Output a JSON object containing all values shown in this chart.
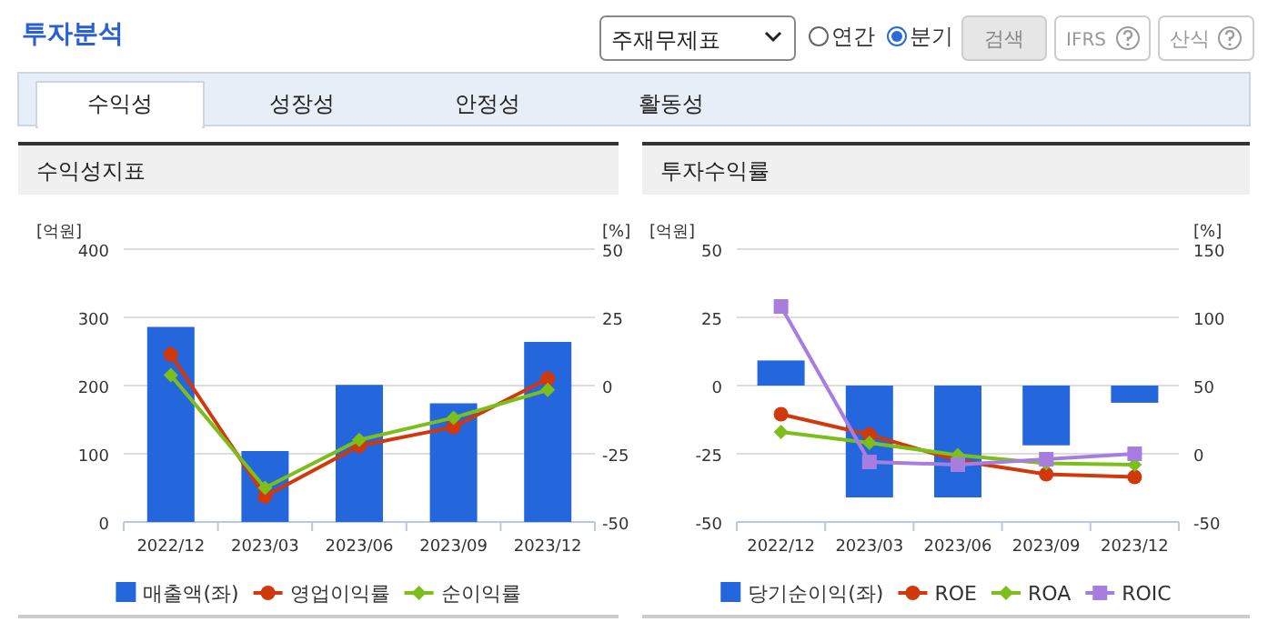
{
  "chart_data": [
    {
      "type": "other",
      "title": "투자분석",
      "annotations": [
        "주재무제표",
        "연간",
        "분기",
        "검색",
        "IFRS",
        "산식",
        "수익성",
        "성장성",
        "안정성",
        "활동성"
      ]
    },
    {
      "type": "bar",
      "title": "수익성지표",
      "ylabel": "[억원]",
      "y2label": "[%]",
      "categories": [
        "2022/12",
        "2023/03",
        "2023/06",
        "2023/09",
        "2023/12"
      ],
      "series": [
        {
          "name": "매출액(좌)",
          "type": "bar",
          "color": "#2467dc",
          "values": [
            286,
            104,
            201,
            174,
            264
          ]
        },
        {
          "name": "영업이익률",
          "type": "line",
          "axis": "y2",
          "marker": "circle",
          "color": "#d1380c",
          "values": [
            11.4,
            -40.6,
            -22.1,
            -15.2,
            2.5
          ]
        },
        {
          "name": "순이익률",
          "type": "line",
          "axis": "y2",
          "marker": "diamond",
          "color": "#7cbf1b",
          "values": [
            3.8,
            -37.5,
            -19.9,
            -11.8,
            -1.6
          ]
        }
      ],
      "ylim": [
        0,
        400
      ],
      "yticks": [
        0,
        100,
        200,
        300,
        400
      ],
      "y2lim": [
        -50,
        50
      ],
      "y2ticks": [
        -50,
        -25,
        0,
        25,
        50
      ],
      "grid": "y",
      "legend": "bottom"
    },
    {
      "type": "bar",
      "title": "투자수익률",
      "ylabel": "[억원]",
      "y2label": "[%]",
      "categories": [
        "2022/12",
        "2023/03",
        "2023/06",
        "2023/09",
        "2023/12"
      ],
      "series": [
        {
          "name": "당기순이익(좌)",
          "type": "bar",
          "color": "#2467dc",
          "values": [
            9.2,
            -41,
            -41,
            -21.9,
            -6.3
          ]
        },
        {
          "name": "ROE",
          "type": "line",
          "axis": "y2",
          "marker": "circle",
          "color": "#d1380c",
          "values": [
            29,
            14,
            -5,
            -15,
            -17
          ]
        },
        {
          "name": "ROA",
          "type": "line",
          "axis": "y2",
          "marker": "diamond",
          "color": "#7cbf1b",
          "values": [
            16,
            8,
            -1,
            -7,
            -8
          ]
        },
        {
          "name": "ROIC",
          "type": "line",
          "axis": "y2",
          "marker": "square",
          "color": "#a77ee0",
          "values": [
            108,
            -6,
            -8,
            -4,
            0
          ]
        }
      ],
      "ylim": [
        -50,
        50
      ],
      "yticks": [
        -50,
        -25,
        0,
        25,
        50
      ],
      "y2lim": [
        -50,
        150
      ],
      "y2ticks": [
        -50,
        0,
        50,
        100,
        150
      ],
      "grid": "y",
      "legend": "bottom"
    }
  ]
}
